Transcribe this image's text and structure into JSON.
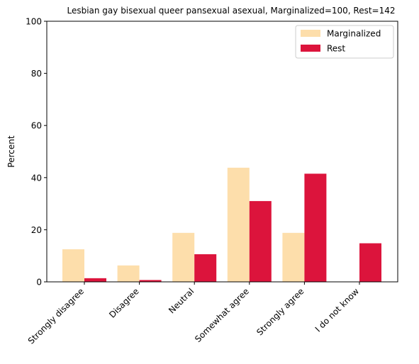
{
  "chart_data": {
    "type": "bar",
    "title": "Lesbian gay bisexual queer pansexual asexual, Marginalized=100, Rest=142",
    "xlabel": "",
    "ylabel": "Percent",
    "ylim": [
      0,
      100
    ],
    "yticks": [
      "0",
      "20",
      "40",
      "60",
      "80",
      "100"
    ],
    "categories": [
      "Strongly disagree",
      "Disagree",
      "Neutral",
      "Somewhat agree",
      "Strongly agree",
      "I do not know"
    ],
    "series": [
      {
        "name": "Marginalized",
        "color": "#fddeab",
        "values": [
          12.5,
          6.3,
          18.8,
          43.8,
          18.8,
          0
        ]
      },
      {
        "name": "Rest",
        "color": "#dc143c",
        "values": [
          1.4,
          0.7,
          10.6,
          31.0,
          41.5,
          14.8
        ]
      }
    ],
    "legend": "top-right",
    "grid": false
  }
}
